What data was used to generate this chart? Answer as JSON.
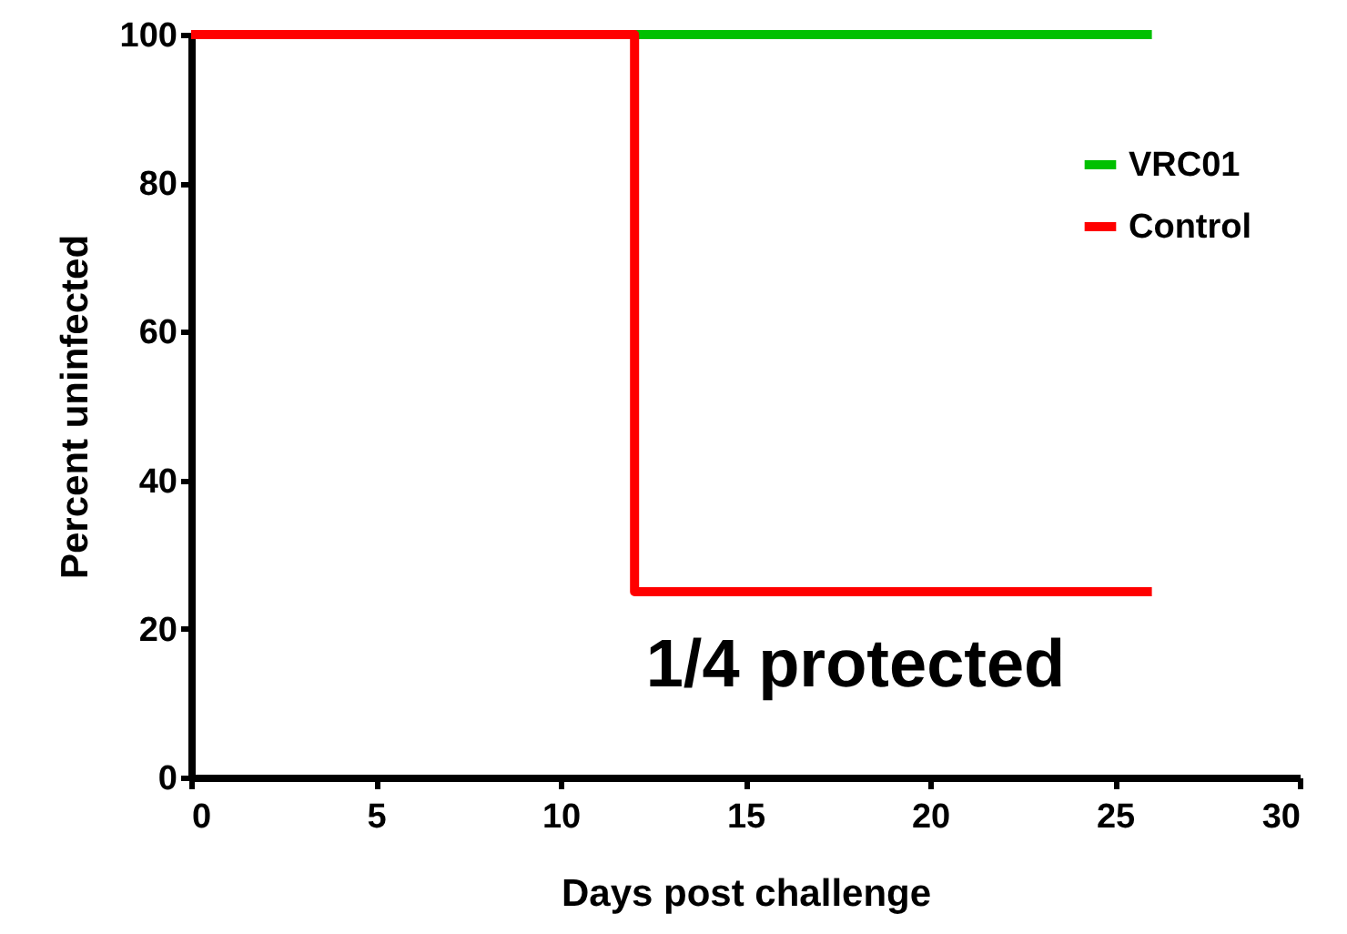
{
  "chart_data": {
    "type": "step",
    "xlabel": "Days post challenge",
    "ylabel": "Percent uninfected",
    "xlim": [
      0,
      30
    ],
    "xticks": [
      0,
      5,
      10,
      15,
      20,
      25,
      30
    ],
    "ylim": [
      0,
      100
    ],
    "yticks": [
      0,
      20,
      40,
      60,
      80,
      100
    ],
    "grid": false,
    "legend": "right",
    "annotations": [
      "1/4 protected"
    ],
    "series": [
      {
        "name": "VRC01",
        "color": "#00c000",
        "x": [
          0,
          26
        ],
        "values": [
          100,
          100
        ]
      },
      {
        "name": "Control",
        "color": "#ff0000",
        "x": [
          0,
          12,
          26
        ],
        "values": [
          100,
          25,
          25
        ]
      }
    ]
  }
}
